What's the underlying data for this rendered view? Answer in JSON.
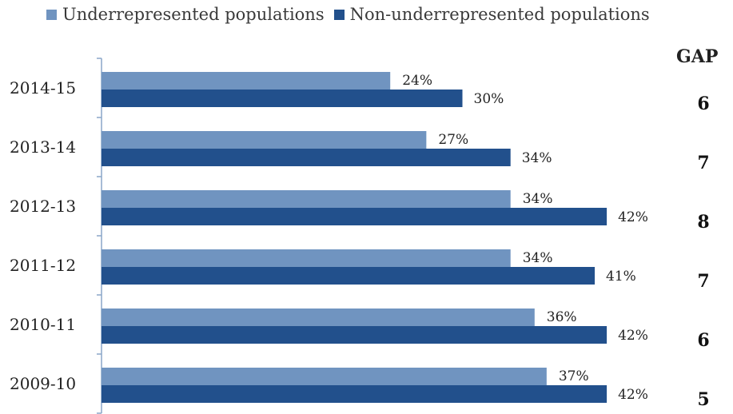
{
  "legend": {
    "underrepresented": "Underrepresented populations",
    "non_underrepresented": "Non-underrepresented populations"
  },
  "gap_header": "GAP",
  "colors": {
    "underrepresented": "#7094c0",
    "non_underrepresented": "#22508c",
    "axis": "#8aa6c8"
  },
  "chart_data": {
    "type": "bar",
    "orientation": "horizontal",
    "categories": [
      "2014-15",
      "2013-14",
      "2012-13",
      "2011-12",
      "2010-11",
      "2009-10"
    ],
    "series": [
      {
        "name": "Underrepresented populations",
        "values": [
          24,
          27,
          34,
          34,
          36,
          37
        ]
      },
      {
        "name": "Non-underrepresented populations",
        "values": [
          30,
          34,
          42,
          41,
          42,
          42
        ]
      }
    ],
    "value_labels": {
      "underrepresented": [
        "24%",
        "27%",
        "34%",
        "34%",
        "36%",
        "37%"
      ],
      "non_underrepresented": [
        "30%",
        "34%",
        "42%",
        "41%",
        "42%",
        "42%"
      ]
    },
    "gap": [
      "6",
      "7",
      "8",
      "7",
      "6",
      "5"
    ],
    "xlim": [
      0,
      55
    ],
    "legend_position": "top",
    "grid": false
  }
}
